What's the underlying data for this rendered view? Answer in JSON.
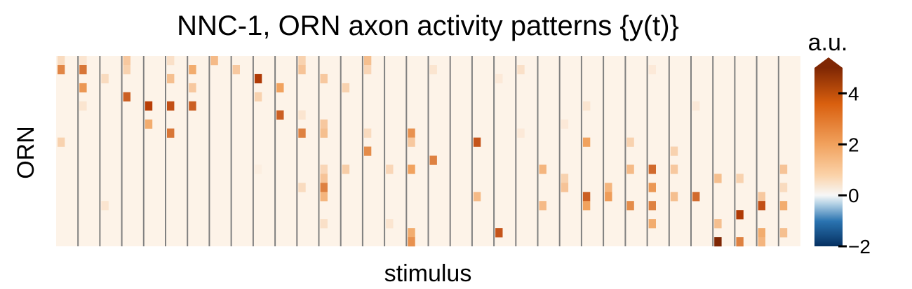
{
  "chart_data": {
    "type": "heatmap",
    "title": "NNC-1, ORN axon activity patterns {y(t)}",
    "xlabel": "stimulus",
    "ylabel": "ORN",
    "n_rows": 21,
    "n_cols": 34,
    "cells_per_group": 3,
    "n_groups": 34,
    "colorbar": {
      "label": "a.u.",
      "range": [
        -2,
        5
      ],
      "ticks": [
        -2,
        0,
        2,
        4
      ],
      "tick_labels": [
        "−2",
        "0",
        "2",
        "4"
      ],
      "extend": "max"
    },
    "colors": {
      "low": "#053061",
      "mid_low": "#3a87c0",
      "zero": "#f7f7f7",
      "mid_high": "#f1a25e",
      "high": "#b83e06",
      "top": "#7f2704",
      "separator": "#808080",
      "background": "#fdf3e8"
    },
    "active_cells": [
      {
        "row": 0,
        "col": 0,
        "v": 0.8
      },
      {
        "row": 0,
        "col": 1,
        "v": 0.6
      },
      {
        "row": 0,
        "col": 3,
        "v": 1.2
      },
      {
        "row": 0,
        "col": 5,
        "v": 0.7
      },
      {
        "row": 0,
        "col": 7,
        "v": 1.5
      },
      {
        "row": 0,
        "col": 11,
        "v": 1.0
      },
      {
        "row": 0,
        "col": 14,
        "v": 1.4
      },
      {
        "row": 1,
        "col": 0,
        "v": 2.5
      },
      {
        "row": 1,
        "col": 1,
        "v": 2.8
      },
      {
        "row": 1,
        "col": 3,
        "v": 1.0
      },
      {
        "row": 1,
        "col": 6,
        "v": 1.8
      },
      {
        "row": 1,
        "col": 8,
        "v": 1.2
      },
      {
        "row": 1,
        "col": 11,
        "v": 1.3
      },
      {
        "row": 1,
        "col": 14,
        "v": 0.9
      },
      {
        "row": 1,
        "col": 17,
        "v": 0.6
      },
      {
        "row": 1,
        "col": 21,
        "v": 0.7
      },
      {
        "row": 1,
        "col": 27,
        "v": 0.5
      },
      {
        "row": 2,
        "col": 2,
        "v": 0.8
      },
      {
        "row": 2,
        "col": 5,
        "v": 1.4
      },
      {
        "row": 2,
        "col": 9,
        "v": 4.0
      },
      {
        "row": 2,
        "col": 12,
        "v": 1.2
      },
      {
        "row": 2,
        "col": 20,
        "v": 0.5
      },
      {
        "row": 3,
        "col": 1,
        "v": 2.2
      },
      {
        "row": 3,
        "col": 6,
        "v": 1.2
      },
      {
        "row": 3,
        "col": 10,
        "v": 2.0
      },
      {
        "row": 3,
        "col": 13,
        "v": 1.0
      },
      {
        "row": 4,
        "col": 3,
        "v": 3.2
      },
      {
        "row": 4,
        "col": 9,
        "v": 1.0
      },
      {
        "row": 5,
        "col": 1,
        "v": 0.6
      },
      {
        "row": 5,
        "col": 4,
        "v": 3.8
      },
      {
        "row": 5,
        "col": 5,
        "v": 3.5
      },
      {
        "row": 5,
        "col": 6,
        "v": 3.2
      },
      {
        "row": 5,
        "col": 24,
        "v": 0.6
      },
      {
        "row": 5,
        "col": 29,
        "v": 0.5
      },
      {
        "row": 6,
        "col": 10,
        "v": 3.2
      },
      {
        "row": 6,
        "col": 11,
        "v": 0.6
      },
      {
        "row": 7,
        "col": 4,
        "v": 1.8
      },
      {
        "row": 7,
        "col": 12,
        "v": 1.2
      },
      {
        "row": 7,
        "col": 23,
        "v": 0.5
      },
      {
        "row": 8,
        "col": 5,
        "v": 2.8
      },
      {
        "row": 8,
        "col": 11,
        "v": 2.6
      },
      {
        "row": 8,
        "col": 12,
        "v": 1.4
      },
      {
        "row": 8,
        "col": 14,
        "v": 0.8
      },
      {
        "row": 8,
        "col": 16,
        "v": 2.3
      },
      {
        "row": 8,
        "col": 21,
        "v": 0.5
      },
      {
        "row": 9,
        "col": 0,
        "v": 1.0
      },
      {
        "row": 9,
        "col": 16,
        "v": 1.2
      },
      {
        "row": 9,
        "col": 19,
        "v": 3.4
      },
      {
        "row": 9,
        "col": 24,
        "v": 2.0
      },
      {
        "row": 9,
        "col": 26,
        "v": 1.0
      },
      {
        "row": 10,
        "col": 14,
        "v": 2.4
      },
      {
        "row": 10,
        "col": 28,
        "v": 1.0
      },
      {
        "row": 11,
        "col": 17,
        "v": 2.6
      },
      {
        "row": 12,
        "col": 9,
        "v": 0.4
      },
      {
        "row": 12,
        "col": 12,
        "v": 0.9
      },
      {
        "row": 12,
        "col": 13,
        "v": 1.1
      },
      {
        "row": 12,
        "col": 15,
        "v": 0.9
      },
      {
        "row": 12,
        "col": 16,
        "v": 2.0
      },
      {
        "row": 12,
        "col": 22,
        "v": 1.6
      },
      {
        "row": 12,
        "col": 26,
        "v": 1.5
      },
      {
        "row": 12,
        "col": 27,
        "v": 3.0
      },
      {
        "row": 12,
        "col": 28,
        "v": 1.2
      },
      {
        "row": 12,
        "col": 33,
        "v": 1.3
      },
      {
        "row": 13,
        "col": 12,
        "v": 1.3
      },
      {
        "row": 13,
        "col": 23,
        "v": 1.0
      },
      {
        "row": 13,
        "col": 30,
        "v": 1.4
      },
      {
        "row": 13,
        "col": 31,
        "v": 1.0
      },
      {
        "row": 14,
        "col": 11,
        "v": 0.8
      },
      {
        "row": 14,
        "col": 12,
        "v": 2.6
      },
      {
        "row": 14,
        "col": 23,
        "v": 1.3
      },
      {
        "row": 14,
        "col": 25,
        "v": 1.6
      },
      {
        "row": 14,
        "col": 27,
        "v": 2.2
      },
      {
        "row": 14,
        "col": 33,
        "v": 0.8
      },
      {
        "row": 15,
        "col": 12,
        "v": 1.6
      },
      {
        "row": 15,
        "col": 19,
        "v": 1.5
      },
      {
        "row": 15,
        "col": 24,
        "v": 3.2
      },
      {
        "row": 15,
        "col": 25,
        "v": 2.1
      },
      {
        "row": 15,
        "col": 28,
        "v": 1.4
      },
      {
        "row": 15,
        "col": 29,
        "v": 3.0
      },
      {
        "row": 15,
        "col": 32,
        "v": 1.2
      },
      {
        "row": 16,
        "col": 2,
        "v": 0.6
      },
      {
        "row": 16,
        "col": 22,
        "v": 1.5
      },
      {
        "row": 16,
        "col": 24,
        "v": 2.0
      },
      {
        "row": 16,
        "col": 26,
        "v": 2.4
      },
      {
        "row": 16,
        "col": 27,
        "v": 2.6
      },
      {
        "row": 16,
        "col": 32,
        "v": 3.5
      },
      {
        "row": 16,
        "col": 33,
        "v": 1.8
      },
      {
        "row": 17,
        "col": 31,
        "v": 4.0
      },
      {
        "row": 18,
        "col": 12,
        "v": 0.7
      },
      {
        "row": 18,
        "col": 15,
        "v": 0.6
      },
      {
        "row": 18,
        "col": 27,
        "v": 1.8
      },
      {
        "row": 18,
        "col": 30,
        "v": 1.4
      },
      {
        "row": 19,
        "col": 16,
        "v": 1.8
      },
      {
        "row": 19,
        "col": 20,
        "v": 3.4
      },
      {
        "row": 19,
        "col": 32,
        "v": 1.8
      },
      {
        "row": 19,
        "col": 33,
        "v": 1.4
      },
      {
        "row": 20,
        "col": 16,
        "v": 2.3
      },
      {
        "row": 20,
        "col": 30,
        "v": 5.0
      },
      {
        "row": 20,
        "col": 31,
        "v": 2.6
      },
      {
        "row": 20,
        "col": 32,
        "v": 1.6
      }
    ]
  }
}
